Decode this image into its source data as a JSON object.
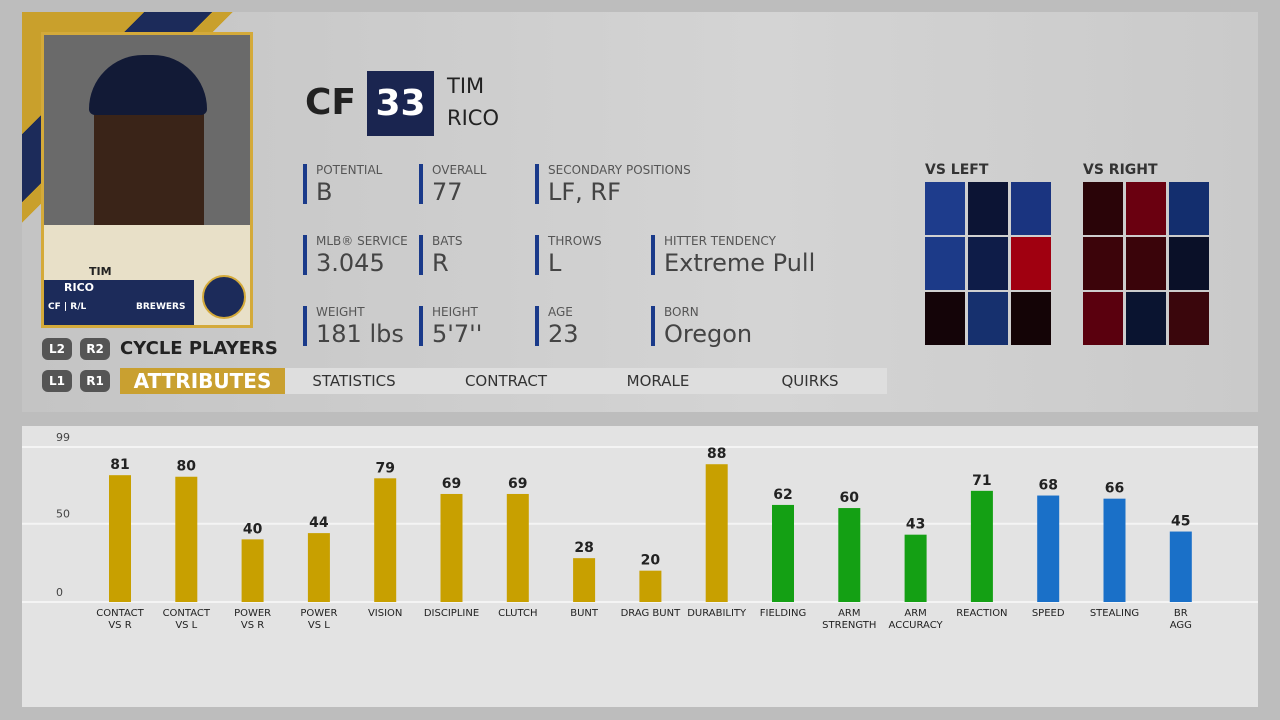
{
  "card": {
    "first": "TIM",
    "last": "RICO",
    "info": "CF | R/L",
    "team": "BREWERS"
  },
  "header": {
    "position": "CF",
    "number": "33",
    "first": "TIM",
    "last": "RICO"
  },
  "info": [
    {
      "label": "POTENTIAL",
      "value": "B"
    },
    {
      "label": "OVERALL",
      "value": "77"
    },
    {
      "label": "SECONDARY POSITIONS",
      "value": "LF, RF"
    },
    {
      "label": "MLB® SERVICE",
      "value": "3.045"
    },
    {
      "label": "BATS",
      "value": "R"
    },
    {
      "label": "THROWS",
      "value": "L"
    },
    {
      "label": "HITTER TENDENCY",
      "value": "Extreme Pull"
    },
    {
      "label": "WEIGHT",
      "value": "181 lbs"
    },
    {
      "label": "HEIGHT",
      "value": "5'7''"
    },
    {
      "label": "AGE",
      "value": "23"
    },
    {
      "label": "BORN",
      "value": "Oregon"
    }
  ],
  "heatmaps": [
    {
      "title": "VS LEFT",
      "colors": [
        "#1e3c8c",
        "#0c1434",
        "#1a3480",
        "#1c3a88",
        "#0e1c48",
        "#a00010",
        "#140408",
        "#16306e",
        "#140406"
      ]
    },
    {
      "title": "VS RIGHT",
      "colors": [
        "#2a0408",
        "#6a0010",
        "#132e6e",
        "#3c040a",
        "#3a040a",
        "#0a1028",
        "#5a000e",
        "#0a1430",
        "#3a060c"
      ]
    }
  ],
  "nav": {
    "cycle_buttons": [
      "L2",
      "R2"
    ],
    "cycle": "CYCLE PLAYERS",
    "tab_buttons": [
      "L1",
      "R1"
    ],
    "tabs": [
      "ATTRIBUTES",
      "STATISTICS",
      "CONTRACT",
      "MORALE",
      "QUIRKS"
    ]
  },
  "chart_data": {
    "type": "bar",
    "categories": [
      "CONTACT\nVS R",
      "CONTACT\nVS L",
      "POWER\nVS R",
      "POWER\nVS L",
      "VISION",
      "DISCIPLINE",
      "CLUTCH",
      "BUNT",
      "DRAG BUNT",
      "DURABILITY",
      "FIELDING",
      "ARM\nSTRENGTH",
      "ARM\nACCURACY",
      "REACTION",
      "SPEED",
      "STEALING",
      "BR\nAGG"
    ],
    "values": [
      81,
      80,
      40,
      44,
      79,
      69,
      69,
      28,
      20,
      88,
      62,
      60,
      43,
      71,
      68,
      66,
      45
    ],
    "colors": [
      "#c8a000",
      "#c8a000",
      "#c8a000",
      "#c8a000",
      "#c8a000",
      "#c8a000",
      "#c8a000",
      "#c8a000",
      "#c8a000",
      "#c8a000",
      "#14a014",
      "#14a014",
      "#14a014",
      "#14a014",
      "#1a70c8",
      "#1a70c8",
      "#1a70c8"
    ],
    "ylim": [
      0,
      99
    ],
    "yticks": [
      0,
      50,
      99
    ],
    "grid": true
  }
}
